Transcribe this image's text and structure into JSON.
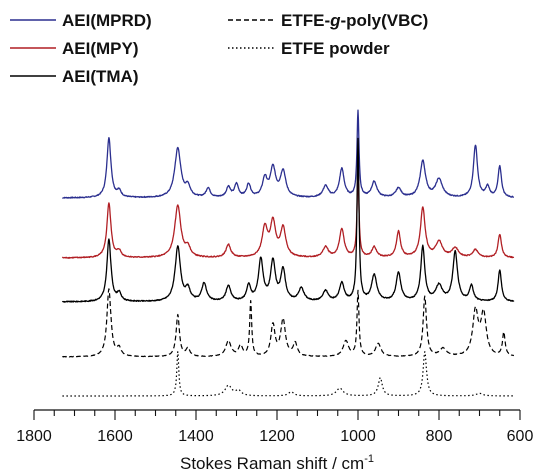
{
  "chart_data": {
    "type": "line",
    "xlabel": "Stokes Raman shift / cm",
    "xlabel_sup": "-1",
    "xlim": [
      1800,
      600
    ],
    "x_ticks": [
      1800,
      1600,
      1400,
      1200,
      1000,
      800,
      600
    ],
    "x_tick_labels": [
      "1800",
      "1600",
      "1400",
      "1200",
      "1000",
      "800",
      "600"
    ],
    "x_range": [
      1730,
      615
    ],
    "legend": {
      "placement": "top",
      "entries": [
        {
          "label": "AEI(MPRD)",
          "style": "solid",
          "color": "#2b2f8f"
        },
        {
          "label": "ETFE-g-poly(VBC)",
          "label_prefix": "ETFE-",
          "label_italic": "g",
          "label_suffix": "-poly(VBC)",
          "style": "dashed",
          "color": "#000000"
        },
        {
          "label": "AEI(MPY)",
          "style": "solid",
          "color": "#b11f24"
        },
        {
          "label": "ETFE powder",
          "style": "dotted",
          "color": "#000000"
        },
        {
          "label": "AEI(TMA)",
          "style": "solid",
          "color": "#000000"
        }
      ]
    },
    "series": [
      {
        "name": "AEI(MPRD)",
        "style": "solid",
        "color": "#2b2f8f",
        "baseline": 0.0,
        "noise": 0.02,
        "peaks": [
          [
            1615,
            1.15,
            6
          ],
          [
            1590,
            0.12,
            6
          ],
          [
            1445,
            0.95,
            9
          ],
          [
            1420,
            0.2,
            7
          ],
          [
            1370,
            0.18,
            6
          ],
          [
            1320,
            0.2,
            6
          ],
          [
            1300,
            0.25,
            6
          ],
          [
            1270,
            0.25,
            6
          ],
          [
            1230,
            0.35,
            7
          ],
          [
            1210,
            0.55,
            8
          ],
          [
            1185,
            0.5,
            8
          ],
          [
            1080,
            0.22,
            8
          ],
          [
            1040,
            0.55,
            7
          ],
          [
            1000,
            1.65,
            3
          ],
          [
            960,
            0.3,
            8
          ],
          [
            900,
            0.18,
            8
          ],
          [
            840,
            0.7,
            8
          ],
          [
            800,
            0.35,
            10
          ],
          [
            710,
            1.0,
            6
          ],
          [
            680,
            0.2,
            6
          ],
          [
            650,
            0.6,
            5
          ]
        ]
      },
      {
        "name": "AEI(MPY)",
        "style": "solid",
        "color": "#b11f24",
        "baseline": 0.0,
        "noise": 0.02,
        "peaks": [
          [
            1615,
            1.05,
            6
          ],
          [
            1590,
            0.12,
            6
          ],
          [
            1445,
            1.0,
            9
          ],
          [
            1420,
            0.18,
            7
          ],
          [
            1320,
            0.25,
            7
          ],
          [
            1230,
            0.55,
            8
          ],
          [
            1210,
            0.65,
            8
          ],
          [
            1185,
            0.55,
            8
          ],
          [
            1080,
            0.2,
            8
          ],
          [
            1040,
            0.55,
            7
          ],
          [
            1000,
            1.55,
            3
          ],
          [
            960,
            0.2,
            7
          ],
          [
            900,
            0.5,
            6
          ],
          [
            840,
            0.95,
            7
          ],
          [
            800,
            0.3,
            10
          ],
          [
            760,
            0.18,
            10
          ],
          [
            710,
            0.15,
            8
          ],
          [
            650,
            0.45,
            5
          ]
        ]
      },
      {
        "name": "AEI(TMA)",
        "style": "solid",
        "color": "#000000",
        "baseline": 0.0,
        "noise": 0.02,
        "peaks": [
          [
            1615,
            1.2,
            6
          ],
          [
            1590,
            0.15,
            6
          ],
          [
            1445,
            1.05,
            8
          ],
          [
            1420,
            0.22,
            7
          ],
          [
            1380,
            0.35,
            7
          ],
          [
            1320,
            0.3,
            7
          ],
          [
            1270,
            0.3,
            6
          ],
          [
            1240,
            0.8,
            7
          ],
          [
            1210,
            0.75,
            7
          ],
          [
            1185,
            0.6,
            7
          ],
          [
            1140,
            0.25,
            8
          ],
          [
            1080,
            0.2,
            8
          ],
          [
            1040,
            0.35,
            7
          ],
          [
            1000,
            3.1,
            3
          ],
          [
            960,
            0.5,
            8
          ],
          [
            900,
            0.55,
            7
          ],
          [
            840,
            1.05,
            6
          ],
          [
            800,
            0.3,
            10
          ],
          [
            760,
            0.95,
            7
          ],
          [
            720,
            0.3,
            6
          ],
          [
            650,
            0.6,
            5
          ]
        ]
      },
      {
        "name": "ETFE-g-poly(VBC)",
        "style": "dashed",
        "color": "#000000",
        "baseline": 0.0,
        "noise": 0.01,
        "peaks": [
          [
            1615,
            1.3,
            6
          ],
          [
            1590,
            0.15,
            6
          ],
          [
            1445,
            0.8,
            5
          ],
          [
            1420,
            0.15,
            6
          ],
          [
            1320,
            0.3,
            8
          ],
          [
            1290,
            0.2,
            6
          ],
          [
            1265,
            1.05,
            3
          ],
          [
            1210,
            0.6,
            6
          ],
          [
            1185,
            0.7,
            7
          ],
          [
            1155,
            0.25,
            6
          ],
          [
            1030,
            0.3,
            8
          ],
          [
            1000,
            1.25,
            3
          ],
          [
            950,
            0.25,
            8
          ],
          [
            835,
            1.15,
            5
          ],
          [
            790,
            0.15,
            10
          ],
          [
            710,
            0.85,
            8
          ],
          [
            690,
            0.8,
            8
          ],
          [
            640,
            0.45,
            4
          ]
        ]
      },
      {
        "name": "ETFE powder",
        "style": "dotted",
        "color": "#000000",
        "baseline": 0.0,
        "noise": 0.0,
        "peaks": [
          [
            1445,
            0.85,
            3
          ],
          [
            1320,
            0.2,
            10
          ],
          [
            1295,
            0.1,
            8
          ],
          [
            1165,
            0.08,
            8
          ],
          [
            1045,
            0.15,
            10
          ],
          [
            945,
            0.35,
            6
          ],
          [
            835,
            0.85,
            5
          ],
          [
            700,
            0.05,
            10
          ]
        ]
      }
    ],
    "grid": false,
    "y_axis_visible": false
  }
}
